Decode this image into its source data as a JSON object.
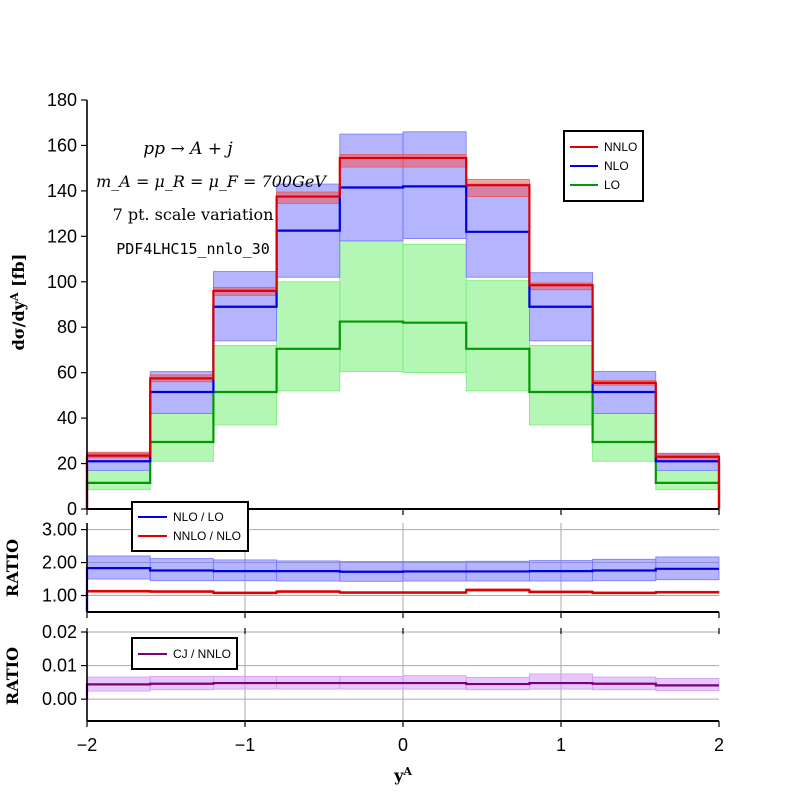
{
  "chart_data": [
    {
      "panel": "main",
      "type": "step",
      "bin_edges": [
        -2,
        -1.6,
        -1.2,
        -0.8,
        -0.4,
        0,
        0.4,
        0.8,
        1.2,
        1.6,
        2
      ],
      "xlim": [
        -2,
        2
      ],
      "ylim": [
        0,
        180
      ],
      "yticks": [
        0,
        20,
        40,
        60,
        80,
        100,
        120,
        140,
        160,
        180
      ],
      "ylabel": "dσ/dy^A [fb]",
      "annotations": [
        "pp → A + j",
        "m_A = μ_R = μ_F = 700GeV",
        "7 pt. scale variation",
        "PDF4LHC15_nnlo_30"
      ],
      "legend_position": "top-right",
      "series": [
        {
          "name": "NNLO",
          "color": "#dd0000",
          "band_color": "#ee5555",
          "values": [
            23.5,
            57.5,
            96,
            137.5,
            154.5,
            154.5,
            142.5,
            98.5,
            55.5,
            23
          ],
          "band_low": [
            22.5,
            56,
            94,
            134.5,
            150.5,
            150.5,
            137.5,
            96.5,
            54.5,
            22
          ],
          "band_high": [
            25,
            59,
            97.5,
            139.5,
            156,
            156,
            145,
            99.5,
            56.5,
            24.5
          ]
        },
        {
          "name": "NLO",
          "color": "#0000dd",
          "band_color": "#7777ff",
          "values": [
            21,
            51.5,
            89,
            122.5,
            141.5,
            142,
            122,
            89,
            51.5,
            21
          ],
          "band_low": [
            17,
            42,
            74,
            102,
            118,
            119,
            102,
            74,
            42,
            17
          ],
          "band_high": [
            24.5,
            60.5,
            104.5,
            143,
            165,
            166,
            143,
            104,
            60.5,
            24.5
          ]
        },
        {
          "name": "LO",
          "color": "#009900",
          "band_color": "#77ee77",
          "values": [
            11.5,
            29.5,
            51.5,
            70.5,
            82.5,
            82,
            70.5,
            51.5,
            29.5,
            11.5
          ],
          "band_low": [
            8.5,
            21,
            37,
            52,
            60.5,
            60,
            52,
            37,
            21,
            8.5
          ],
          "band_high": [
            17,
            42,
            72,
            100,
            118,
            116.5,
            100.5,
            72,
            42,
            17
          ]
        }
      ]
    },
    {
      "panel": "ratio1",
      "type": "step",
      "bin_edges": [
        -2,
        -1.6,
        -1.2,
        -0.8,
        -0.4,
        0,
        0.4,
        0.8,
        1.2,
        1.6,
        2
      ],
      "xlim": [
        -2,
        2
      ],
      "ylim": [
        0.5,
        3.2
      ],
      "yticks": [
        1.0,
        2.0,
        3.0
      ],
      "ytick_labels": [
        "1.00",
        "2.00",
        "3.00"
      ],
      "ylabel": "RATIO",
      "legend_position": "top-left",
      "series": [
        {
          "name": "NLO / LO",
          "color": "#0000dd",
          "band_color": "#7777ff",
          "values": [
            1.83,
            1.76,
            1.74,
            1.74,
            1.72,
            1.73,
            1.73,
            1.74,
            1.76,
            1.81
          ],
          "band_low": [
            1.5,
            1.45,
            1.45,
            1.44,
            1.43,
            1.44,
            1.44,
            1.44,
            1.45,
            1.48
          ],
          "band_high": [
            2.2,
            2.12,
            2.08,
            2.05,
            2.03,
            2.03,
            2.04,
            2.06,
            2.1,
            2.17
          ]
        },
        {
          "name": "NNLO / NLO",
          "color": "#dd0000",
          "band_color": "#ee5555",
          "values": [
            1.13,
            1.12,
            1.08,
            1.12,
            1.09,
            1.09,
            1.17,
            1.11,
            1.08,
            1.1
          ],
          "band_low": [
            1.1,
            1.09,
            1.05,
            1.09,
            1.06,
            1.06,
            1.13,
            1.08,
            1.05,
            1.07
          ],
          "band_high": [
            1.16,
            1.15,
            1.11,
            1.15,
            1.12,
            1.12,
            1.2,
            1.14,
            1.11,
            1.13
          ]
        }
      ]
    },
    {
      "panel": "ratio2",
      "type": "step",
      "bin_edges": [
        -2,
        -1.6,
        -1.2,
        -0.8,
        -0.4,
        0,
        0.4,
        0.8,
        1.2,
        1.6,
        2
      ],
      "xlim": [
        -2,
        2
      ],
      "ylim": [
        -0.0065,
        0.02
      ],
      "yticks": [
        0,
        0.01,
        0.02
      ],
      "ytick_labels": [
        "0.00",
        "0.01",
        "0.02"
      ],
      "ylabel": "RATIO",
      "xlabel": "y^A",
      "xticks": [
        -2,
        -1,
        0,
        1,
        2
      ],
      "xtick_labels": [
        "−2",
        "−1",
        "0",
        "1",
        "2"
      ],
      "legend_position": "top-left",
      "series": [
        {
          "name": "CJ / NNLO",
          "color": "#7a007a",
          "band_color": "#d49af5",
          "values": [
            0.0044,
            0.0046,
            0.0048,
            0.0048,
            0.0048,
            0.0048,
            0.0045,
            0.0048,
            0.0046,
            0.0041
          ],
          "band_low": [
            0.0024,
            0.0028,
            0.003,
            0.003,
            0.003,
            0.003,
            0.0028,
            0.003,
            0.0028,
            0.0025
          ],
          "band_high": [
            0.0066,
            0.0068,
            0.0068,
            0.0068,
            0.0068,
            0.007,
            0.0065,
            0.0075,
            0.0066,
            0.0062
          ]
        }
      ]
    }
  ]
}
